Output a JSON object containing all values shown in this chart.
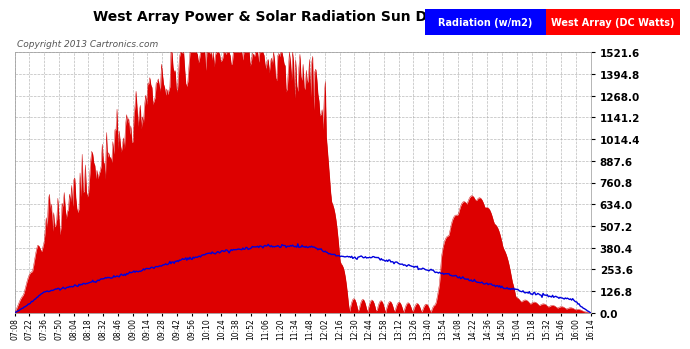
{
  "title": "West Array Power & Solar Radiation Sun Dec 1 16:16",
  "copyright": "Copyright 2013 Cartronics.com",
  "legend_radiation": "Radiation (w/m2)",
  "legend_west": "West Array (DC Watts)",
  "bg_color": "#ffffff",
  "plot_bg_color": "#ffffff",
  "grid_color": "#aaaaaa",
  "title_color": "#000000",
  "copyright_color": "#555555",
  "yticks": [
    0.0,
    126.8,
    253.6,
    380.4,
    507.2,
    634.0,
    760.8,
    887.6,
    1014.4,
    1141.2,
    1268.0,
    1394.8,
    1521.6
  ],
  "ymax": 1521.6,
  "xtick_labels": [
    "07:08",
    "07:22",
    "07:36",
    "07:50",
    "08:04",
    "08:18",
    "08:32",
    "08:46",
    "09:00",
    "09:14",
    "09:28",
    "09:42",
    "09:56",
    "10:10",
    "10:24",
    "10:38",
    "10:52",
    "11:06",
    "11:20",
    "11:34",
    "11:48",
    "12:02",
    "12:16",
    "12:30",
    "12:44",
    "12:58",
    "13:12",
    "13:26",
    "13:40",
    "13:54",
    "14:08",
    "14:22",
    "14:36",
    "14:50",
    "15:04",
    "15:18",
    "15:32",
    "15:46",
    "16:00",
    "16:14"
  ],
  "west_fill_color": "#dd0000",
  "west_line_color": "#cc0000",
  "radiation_color": "#0000dd"
}
